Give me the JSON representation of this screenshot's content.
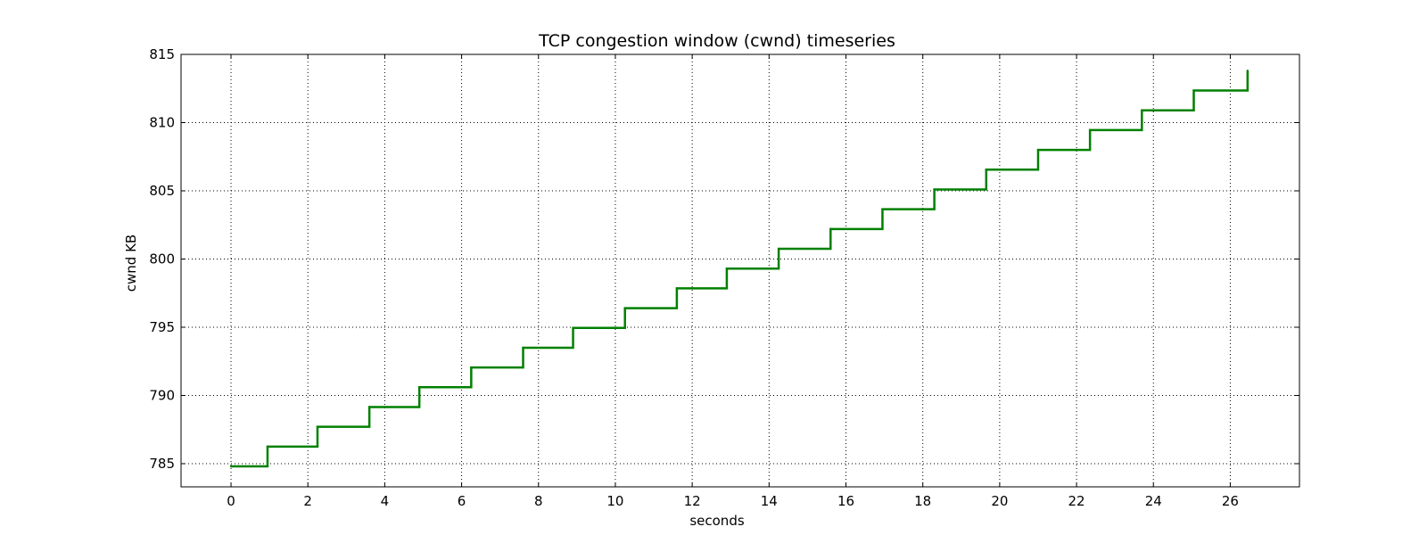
{
  "chart_data": {
    "type": "line",
    "style": "step",
    "title": "TCP congestion window (cwnd) timeseries",
    "xlabel": "seconds",
    "ylabel": "cwnd KB",
    "xlim": [
      -1.3,
      27.8
    ],
    "ylim": [
      783.3,
      815.0
    ],
    "xticks": [
      0,
      2,
      4,
      6,
      8,
      10,
      12,
      14,
      16,
      18,
      20,
      22,
      24,
      26
    ],
    "yticks": [
      785,
      790,
      795,
      800,
      805,
      810,
      815
    ],
    "grid": true,
    "legend": "none",
    "series": [
      {
        "name": "cwnd",
        "color": "#008000",
        "x": [
          0.0,
          0.95,
          2.25,
          3.6,
          4.9,
          6.25,
          7.6,
          8.9,
          10.25,
          11.6,
          12.9,
          14.25,
          15.6,
          16.95,
          18.3,
          19.65,
          21.0,
          22.35,
          23.7,
          25.05,
          26.45
        ],
        "y": [
          784.8,
          786.25,
          787.7,
          789.15,
          790.6,
          792.05,
          793.5,
          794.95,
          796.4,
          797.85,
          799.3,
          800.75,
          802.2,
          803.65,
          805.1,
          806.55,
          808.0,
          809.45,
          810.9,
          812.35,
          813.8
        ],
        "x_end": 26.45
      }
    ]
  }
}
